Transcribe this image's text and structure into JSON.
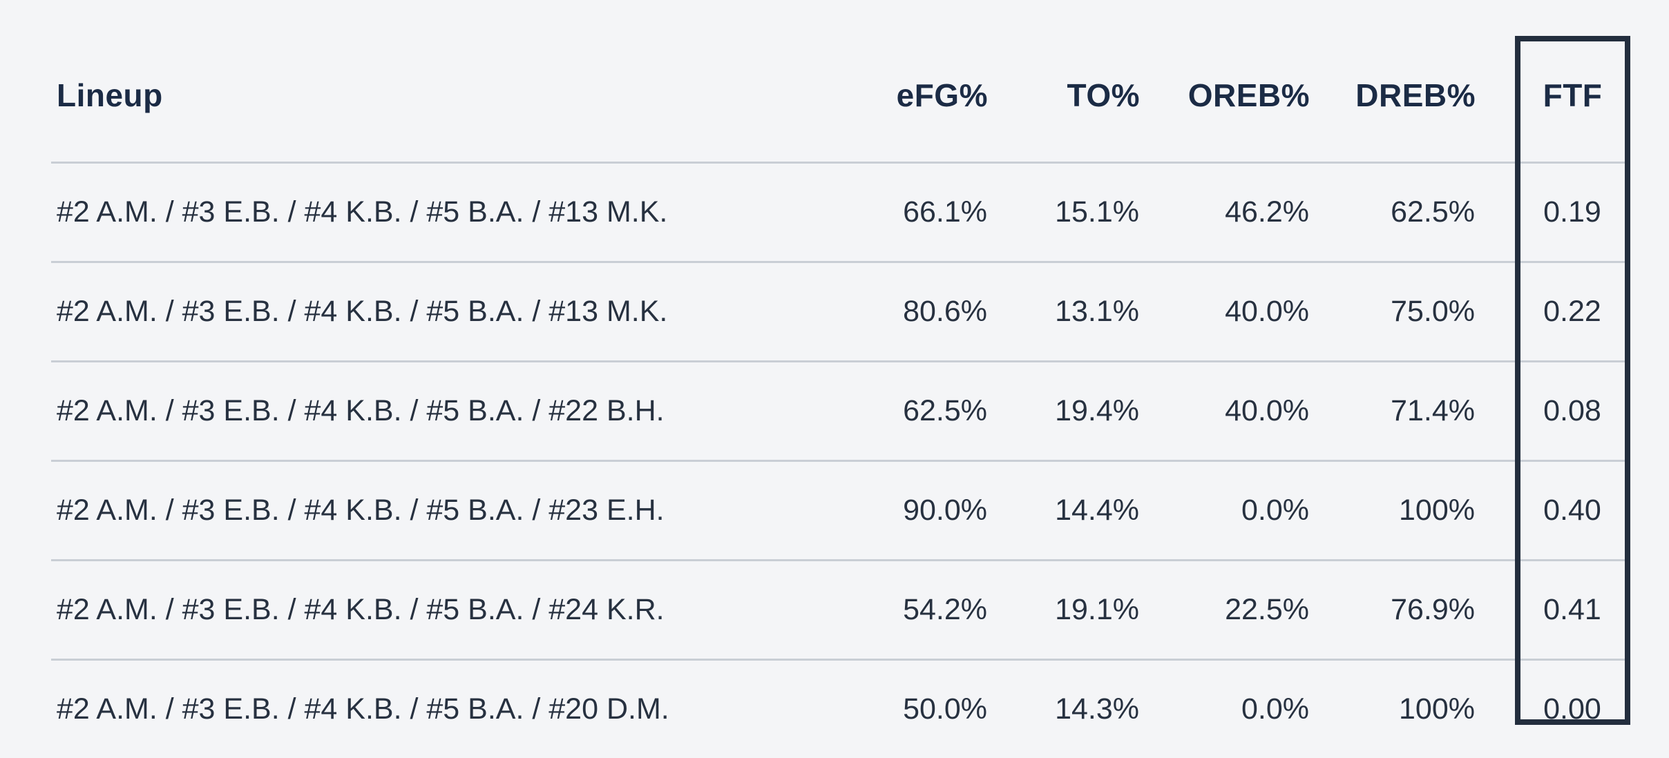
{
  "chart_data": {
    "type": "table",
    "title": "",
    "columns": [
      "Lineup",
      "eFG%",
      "TO%",
      "OREB%",
      "DREB%",
      "FTF"
    ],
    "rows": [
      [
        "#2 A.M. / #3 E.B. / #4 K.B. / #5 B.A. / #13 M.K.",
        "66.1%",
        "15.1%",
        "46.2%",
        "62.5%",
        "0.19"
      ],
      [
        "#2 A.M. / #3 E.B. / #4 K.B. / #5 B.A. / #13 M.K.",
        "80.6%",
        "13.1%",
        "40.0%",
        "75.0%",
        "0.22"
      ],
      [
        "#2 A.M. / #3 E.B. / #4 K.B. / #5 B.A. / #22 B.H.",
        "62.5%",
        "19.4%",
        "40.0%",
        "71.4%",
        "0.08"
      ],
      [
        "#2 A.M. / #3 E.B. / #4 K.B. / #5 B.A. / #23 E.H.",
        "90.0%",
        "14.4%",
        "0.0%",
        "100%",
        "0.40"
      ],
      [
        "#2 A.M. / #3 E.B. / #4 K.B. / #5 B.A. / #24 K.R.",
        "54.2%",
        "19.1%",
        "22.5%",
        "76.9%",
        "0.41"
      ],
      [
        "#2 A.M. / #3 E.B. / #4 K.B. / #5 B.A. / #20 D.M.",
        "50.0%",
        "14.3%",
        "0.0%",
        "100%",
        "0.00"
      ]
    ],
    "highlighted_column": "FTF",
    "layout_hints": {
      "numeric_columns_alignment": "right",
      "highlight_style": "dark rectangular border around FTF column",
      "row_dividers": true,
      "grid": "horizontal dividers only"
    }
  },
  "colors": {
    "background": "#f4f5f7",
    "header_text": "#1b2b45",
    "body_text": "#273140",
    "row_divider": "#c9ced5",
    "highlight_border": "#232e3e"
  }
}
